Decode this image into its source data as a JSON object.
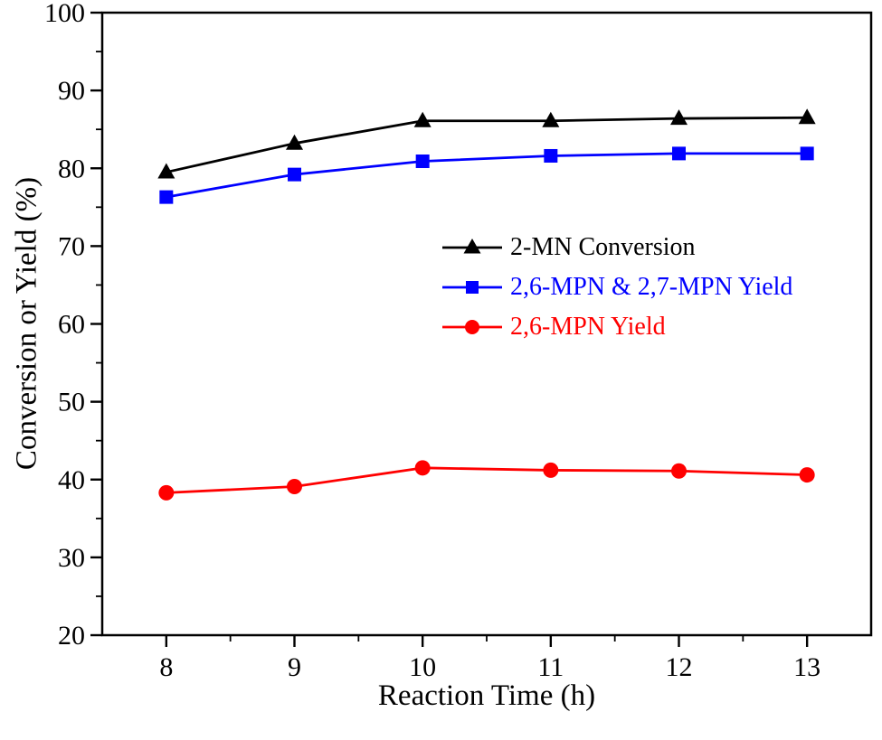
{
  "chart_data": {
    "type": "line",
    "title": "",
    "xlabel": "Reaction Time (h)",
    "ylabel": "Conversion or Yield (%)",
    "xlim": [
      7.5,
      13.5
    ],
    "ylim": [
      20,
      100
    ],
    "x_ticks": [
      8,
      9,
      10,
      11,
      12,
      13
    ],
    "y_ticks": [
      20,
      30,
      40,
      50,
      60,
      70,
      80,
      90,
      100
    ],
    "x_minor_step": 0.5,
    "y_minor_step": 5,
    "grid": false,
    "legend_position": "inside-center-right",
    "x": [
      8,
      9,
      10,
      11,
      12,
      13
    ],
    "series": [
      {
        "name": "2-MN Conversion",
        "color": "#000000",
        "marker": "triangle",
        "values": [
          79.5,
          83.2,
          86.1,
          86.1,
          86.4,
          86.5
        ]
      },
      {
        "name": "2,6-MPN & 2,7-MPN Yield",
        "color": "#0000ff",
        "marker": "square",
        "values": [
          76.3,
          79.2,
          80.9,
          81.6,
          81.9,
          81.9
        ]
      },
      {
        "name": "2,6-MPN Yield",
        "color": "#ff0000",
        "marker": "circle",
        "values": [
          38.3,
          39.1,
          41.5,
          41.2,
          41.1,
          40.6
        ]
      }
    ]
  }
}
